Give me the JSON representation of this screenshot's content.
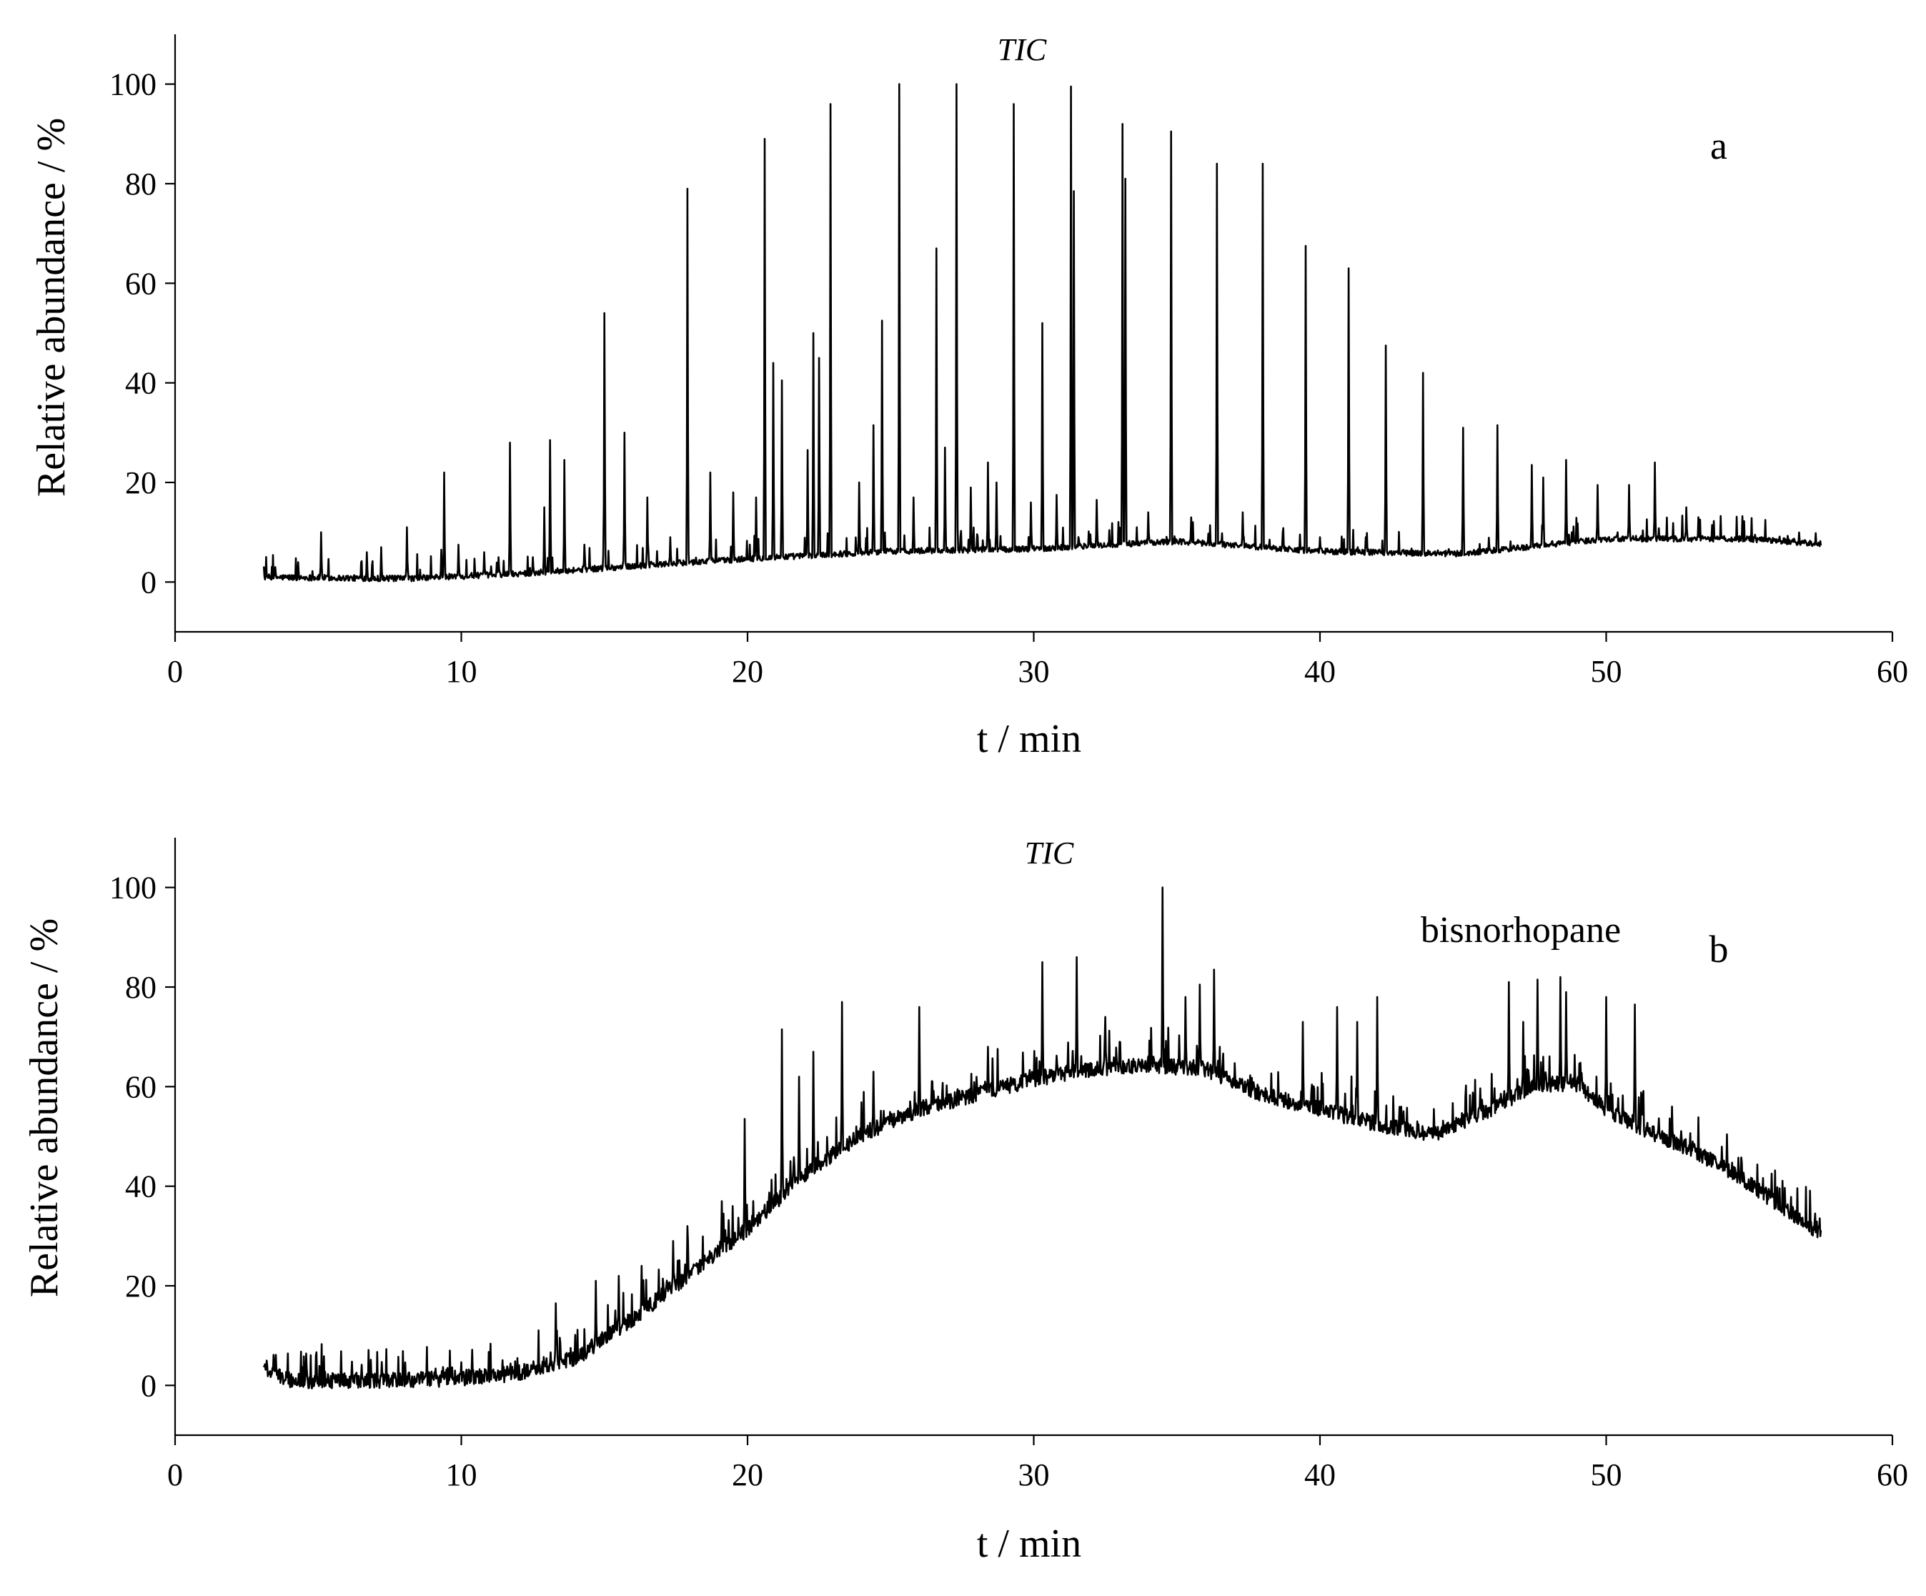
{
  "figure": {
    "background": "#ffffff",
    "line_color": "#000000"
  },
  "chart_data": [
    {
      "type": "line",
      "panel": "a",
      "title": "TIC",
      "xlabel": "t / min",
      "ylabel": "Relative abundance / %",
      "xlim": [
        0,
        60
      ],
      "ylim": [
        -10,
        110
      ],
      "xticks": [
        0,
        10,
        20,
        30,
        40,
        50,
        60
      ],
      "yticks": [
        0,
        20,
        40,
        60,
        80,
        100
      ],
      "grid": false,
      "series": [
        {
          "name": "TIC",
          "description": "Total ion chromatogram; x range 3.1–57.5 min",
          "x_range": [
            3.1,
            57.5
          ],
          "baseline": [
            [
              3.1,
              0.8
            ],
            [
              8,
              0.5
            ],
            [
              12,
              1.5
            ],
            [
              16,
              3
            ],
            [
              20,
              4.5
            ],
            [
              25,
              6
            ],
            [
              30,
              6.5
            ],
            [
              35,
              8
            ],
            [
              40,
              6
            ],
            [
              45,
              5.5
            ],
            [
              50,
              8.5
            ],
            [
              55,
              8.5
            ],
            [
              57.5,
              7.5
            ]
          ],
          "peaks": [
            [
              3.5,
              3
            ],
            [
              4.3,
              4
            ],
            [
              5.1,
              10
            ],
            [
              6.7,
              6
            ],
            [
              7.2,
              7
            ],
            [
              8.1,
              11
            ],
            [
              9.3,
              6.5
            ],
            [
              9.4,
              22
            ],
            [
              9.9,
              7.5
            ],
            [
              10.8,
              6
            ],
            [
              11.3,
              5
            ],
            [
              11.7,
              28
            ],
            [
              12.5,
              5
            ],
            [
              12.9,
              15
            ],
            [
              13.1,
              28.5
            ],
            [
              13.6,
              24.5
            ],
            [
              14.3,
              7.5
            ],
            [
              15.0,
              54
            ],
            [
              15.7,
              30
            ],
            [
              16.5,
              17
            ],
            [
              17.3,
              9
            ],
            [
              17.9,
              79
            ],
            [
              18.7,
              22
            ],
            [
              19.5,
              18
            ],
            [
              20.3,
              17
            ],
            [
              20.6,
              89
            ],
            [
              20.9,
              44
            ],
            [
              21.2,
              40.5
            ],
            [
              22.1,
              26.5
            ],
            [
              22.3,
              50
            ],
            [
              22.5,
              45
            ],
            [
              22.9,
              96
            ],
            [
              23.9,
              20
            ],
            [
              24.4,
              31.5
            ],
            [
              24.7,
              52.5
            ],
            [
              25.3,
              100
            ],
            [
              25.8,
              17
            ],
            [
              26.6,
              67
            ],
            [
              26.9,
              27
            ],
            [
              27.3,
              100
            ],
            [
              27.8,
              19
            ],
            [
              28.4,
              24
            ],
            [
              28.7,
              20
            ],
            [
              29.3,
              96
            ],
            [
              29.9,
              16
            ],
            [
              30.3,
              52
            ],
            [
              30.8,
              17.5
            ],
            [
              31.3,
              99.5
            ],
            [
              31.4,
              78.5
            ],
            [
              32.2,
              16.5
            ],
            [
              33.1,
              92
            ],
            [
              33.2,
              81
            ],
            [
              34.0,
              14
            ],
            [
              34.8,
              90.5
            ],
            [
              35.5,
              13
            ],
            [
              36.4,
              84
            ],
            [
              37.3,
              14
            ],
            [
              38.0,
              84
            ],
            [
              38.7,
              10
            ],
            [
              39.5,
              67.5
            ],
            [
              40.0,
              9
            ],
            [
              41.0,
              63
            ],
            [
              41.6,
              9
            ],
            [
              42.3,
              47.5
            ],
            [
              43.6,
              42
            ],
            [
              45.0,
              31
            ],
            [
              46.2,
              31.5
            ],
            [
              47.4,
              23.5
            ],
            [
              47.8,
              21
            ],
            [
              48.6,
              24.5
            ],
            [
              49.7,
              19.5
            ],
            [
              50.8,
              19.5
            ],
            [
              51.7,
              24
            ],
            [
              52.8,
              15
            ],
            [
              55.2,
              9.5
            ]
          ]
        }
      ]
    },
    {
      "type": "line",
      "panel": "b",
      "title": "TIC",
      "xlabel": "t / min",
      "ylabel": "Relative abundance / %",
      "xlim": [
        0,
        60
      ],
      "ylim": [
        -10,
        110
      ],
      "xticks": [
        0,
        10,
        20,
        30,
        40,
        50,
        60
      ],
      "yticks": [
        0,
        20,
        40,
        60,
        80,
        100
      ],
      "grid": false,
      "annotation": "bisnorhopane",
      "series": [
        {
          "name": "TIC",
          "description": "Total ion chromatogram with large unresolved hump; x range 3.1–57.5 min",
          "x_range": [
            3.1,
            57.5
          ],
          "baseline": [
            [
              3.1,
              3
            ],
            [
              4,
              0.5
            ],
            [
              8,
              0.5
            ],
            [
              10,
              1
            ],
            [
              12,
              2
            ],
            [
              14,
              5
            ],
            [
              16,
              13
            ],
            [
              18,
              22
            ],
            [
              20,
              31
            ],
            [
              22,
              42
            ],
            [
              24,
              50
            ],
            [
              26,
              55
            ],
            [
              28,
              58
            ],
            [
              30,
              61
            ],
            [
              32,
              63
            ],
            [
              34,
              64
            ],
            [
              36,
              63
            ],
            [
              38,
              58
            ],
            [
              40,
              55
            ],
            [
              42,
              52
            ],
            [
              44,
              50
            ],
            [
              46,
              55
            ],
            [
              47.5,
              60
            ],
            [
              49,
              60
            ],
            [
              50,
              55
            ],
            [
              52,
              49
            ],
            [
              53,
              47
            ],
            [
              55,
              40
            ],
            [
              57.5,
              30
            ]
          ],
          "peaks": [
            [
              3.2,
              5
            ],
            [
              4.6,
              3.5
            ],
            [
              13.3,
              16.5
            ],
            [
              14.7,
              21
            ],
            [
              15.5,
              22
            ],
            [
              16.3,
              24
            ],
            [
              17.4,
              29
            ],
            [
              17.9,
              32
            ],
            [
              19.1,
              37
            ],
            [
              19.9,
              53.5
            ],
            [
              21.2,
              71.5
            ],
            [
              21.8,
              62
            ],
            [
              22.3,
              67
            ],
            [
              23.3,
              77
            ],
            [
              24.4,
              63
            ],
            [
              26.0,
              76
            ],
            [
              28.4,
              68
            ],
            [
              30.3,
              85
            ],
            [
              31.5,
              86
            ],
            [
              32.5,
              74
            ],
            [
              34.5,
              100
            ],
            [
              35.3,
              78
            ],
            [
              35.8,
              80.5
            ],
            [
              36.3,
              83.5
            ],
            [
              39.4,
              73
            ],
            [
              40.6,
              76
            ],
            [
              41.3,
              73
            ],
            [
              42.0,
              78
            ],
            [
              46.6,
              81
            ],
            [
              47.1,
              73
            ],
            [
              47.6,
              81.5
            ],
            [
              48.4,
              82
            ],
            [
              48.6,
              79
            ],
            [
              50.0,
              78
            ],
            [
              51.0,
              76.5
            ],
            [
              52.3,
              56
            ]
          ]
        }
      ]
    }
  ]
}
